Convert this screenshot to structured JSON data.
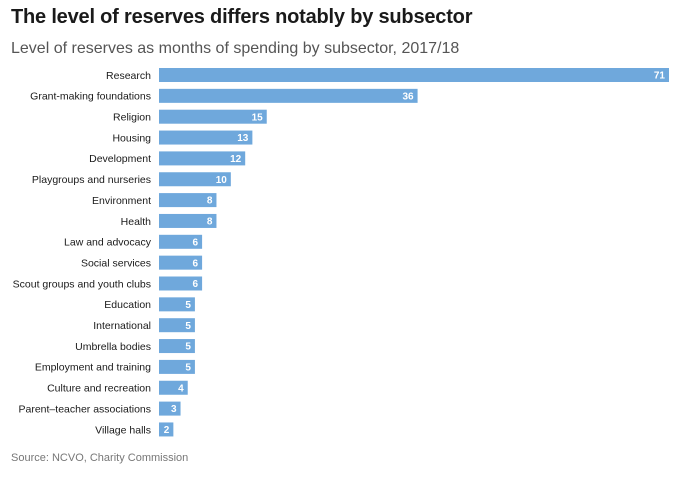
{
  "chart_data": {
    "type": "bar",
    "orientation": "horizontal",
    "title": "The level of reserves differs notably by subsector",
    "subtitle": "Level of reserves as months of spending by subsector, 2017/18",
    "source": "Source: NCVO, Charity Commission",
    "xlabel": "",
    "ylabel": "",
    "xlim": [
      0,
      71
    ],
    "grid": false,
    "bar_color": "#6fa8dc",
    "categories": [
      "Research",
      "Grant-making foundations",
      "Religion",
      "Housing",
      "Development",
      "Playgroups and nurseries",
      "Environment",
      "Health",
      "Law and advocacy",
      "Social services",
      "Scout groups and youth clubs",
      "Education",
      "International",
      "Umbrella bodies",
      "Employment and training",
      "Culture and recreation",
      "Parent–teacher associations",
      "Village halls"
    ],
    "values": [
      71,
      36,
      15,
      13,
      12,
      10,
      8,
      8,
      6,
      6,
      6,
      5,
      5,
      5,
      5,
      4,
      3,
      2
    ]
  }
}
